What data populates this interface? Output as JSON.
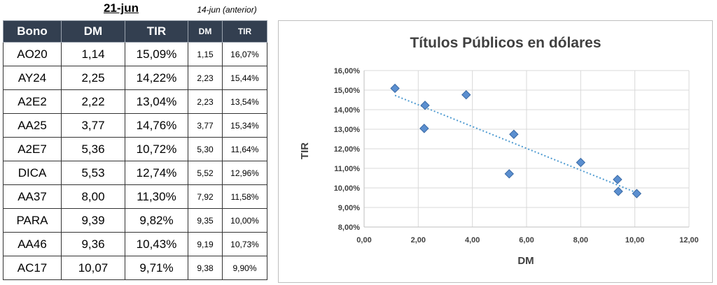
{
  "header": {
    "date_current": "21-jun",
    "date_previous": "14-jun (anterior)"
  },
  "table": {
    "columns": [
      "Bono",
      "DM",
      "TIR",
      "DM",
      "TIR"
    ],
    "rows": [
      [
        "AO20",
        "1,14",
        "15,09%",
        "1,15",
        "16,07%"
      ],
      [
        "AY24",
        "2,25",
        "14,22%",
        "2,23",
        "15,44%"
      ],
      [
        "A2E2",
        "2,22",
        "13,04%",
        "2,23",
        "13,54%"
      ],
      [
        "AA25",
        "3,77",
        "14,76%",
        "3,77",
        "15,34%"
      ],
      [
        "A2E7",
        "5,36",
        "10,72%",
        "5,30",
        "11,64%"
      ],
      [
        "DICA",
        "5,53",
        "12,74%",
        "5,52",
        "12,96%"
      ],
      [
        "AA37",
        "8,00",
        "11,30%",
        "7,92",
        "11,58%"
      ],
      [
        "PARA",
        "9,39",
        "9,82%",
        "9,35",
        "10,00%"
      ],
      [
        "AA46",
        "9,36",
        "10,43%",
        "9,19",
        "10,73%"
      ],
      [
        "AC17",
        "10,07",
        "9,71%",
        "9,38",
        "9,90%"
      ]
    ],
    "header_color": "#333f50"
  },
  "chart_data": {
    "type": "scatter",
    "title": "Títulos Públicos en dólares",
    "xlabel": "DM",
    "ylabel": "TIR",
    "xlim": [
      0,
      12
    ],
    "ylim": [
      8,
      16
    ],
    "x_ticks": [
      0,
      2,
      4,
      6,
      8,
      10,
      12
    ],
    "y_ticks": [
      8,
      9,
      10,
      11,
      12,
      13,
      14,
      15,
      16
    ],
    "x_tick_labels": [
      "0,00",
      "2,00",
      "4,00",
      "6,00",
      "8,00",
      "10,00",
      "12,00"
    ],
    "y_tick_labels": [
      "8,00%",
      "9,00%",
      "10,00%",
      "11,00%",
      "12,00%",
      "13,00%",
      "14,00%",
      "15,00%",
      "16,00%"
    ],
    "grid": true,
    "marker_color": "#5b8fd0",
    "marker_edge_color": "#3a6aa5",
    "trendline": {
      "type": "linear",
      "style": "dotted",
      "color": "#4f9bd1"
    },
    "points": [
      {
        "x": 1.14,
        "y": 15.09
      },
      {
        "x": 2.25,
        "y": 14.22
      },
      {
        "x": 2.22,
        "y": 13.04
      },
      {
        "x": 3.77,
        "y": 14.76
      },
      {
        "x": 5.36,
        "y": 10.72
      },
      {
        "x": 5.53,
        "y": 12.74
      },
      {
        "x": 8.0,
        "y": 11.3
      },
      {
        "x": 9.39,
        "y": 9.82
      },
      {
        "x": 9.36,
        "y": 10.43
      },
      {
        "x": 10.07,
        "y": 9.71
      }
    ]
  }
}
